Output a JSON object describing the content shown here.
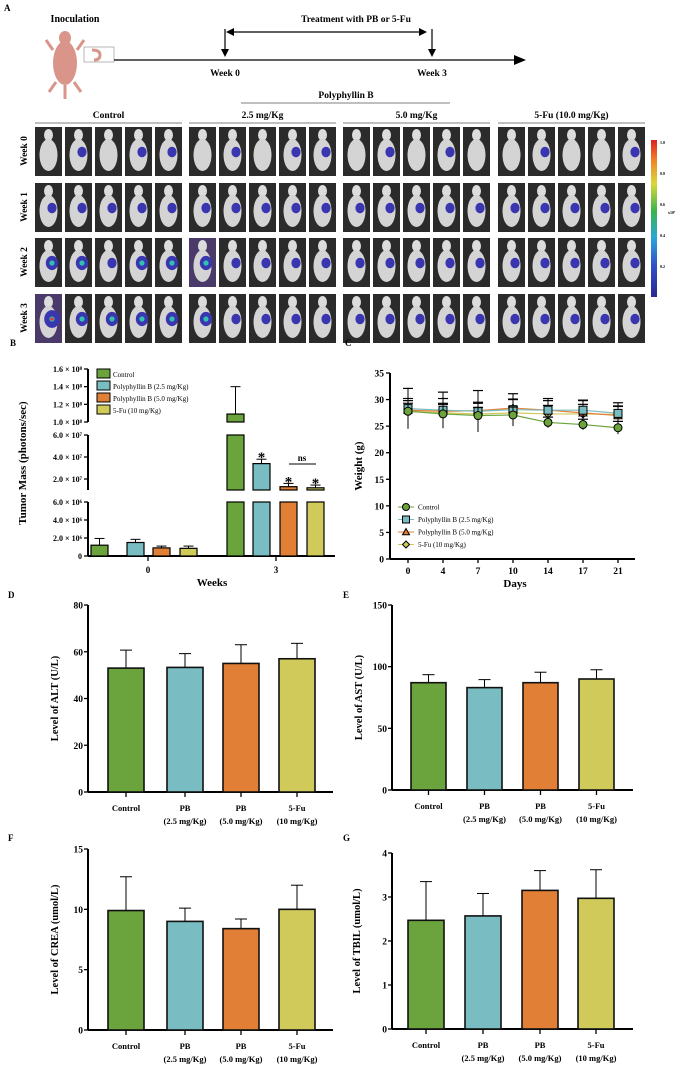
{
  "colors": {
    "control": "#6ba33c",
    "pb25": "#79bcc1",
    "pb50": "#e27f37",
    "fu": "#d0ca5a",
    "axis": "#000000"
  },
  "panel_a": {
    "label": "A",
    "inoculation": "Inoculation",
    "treatment": "Treatment with PB or 5-Fu",
    "week0": "Week 0",
    "week3": "Week 3",
    "polyphyllin": "Polyphyllin B",
    "groups": [
      "Control",
      "2.5 mg/Kg",
      "5.0 mg/Kg",
      "5-Fu (10.0 mg/Kg)"
    ],
    "rows": [
      "Week 0",
      "Week 1",
      "Week 2",
      "Week 3"
    ],
    "signal_levels": [
      [
        [
          0,
          1,
          0,
          1,
          1
        ],
        [
          0,
          1,
          0,
          1,
          1
        ],
        [
          0,
          1,
          0,
          1,
          0
        ],
        [
          0,
          1,
          0,
          0,
          1
        ]
      ],
      [
        [
          1,
          1,
          1,
          1,
          1
        ],
        [
          1,
          1,
          1,
          1,
          1
        ],
        [
          1,
          1,
          1,
          1,
          1
        ],
        [
          1,
          1,
          1,
          1,
          1
        ]
      ],
      [
        [
          2,
          2,
          1,
          2,
          2
        ],
        [
          2,
          1,
          1,
          1,
          1
        ],
        [
          1,
          1,
          1,
          1,
          1
        ],
        [
          1,
          1,
          1,
          1,
          1
        ]
      ],
      [
        [
          3,
          2,
          2,
          2,
          2
        ],
        [
          2,
          1,
          1,
          1,
          1
        ],
        [
          1,
          1,
          1,
          1,
          1
        ],
        [
          1,
          1,
          1,
          1,
          1
        ]
      ]
    ],
    "colorbar": {
      "ticks": [
        "1.0",
        "0.8",
        "0.6",
        "0.4",
        "0.2"
      ],
      "unit": "x10⁷"
    }
  },
  "chart_data": [
    {
      "panel": "B",
      "type": "bar",
      "ylabel": "Tumor Mass (photons/sec)",
      "xlabel": "Weeks",
      "categories": [
        "0",
        "3"
      ],
      "y_axis": "broken",
      "ylim": [
        0,
        160000000.0
      ],
      "y_segments": [
        [
          0,
          6000000.0
        ],
        [
          10000000.0,
          60000000.0
        ],
        [
          100000000.0,
          160000000.0
        ]
      ],
      "y_ticks": [
        "0",
        "2.0 × 10⁶",
        "4.0 × 10⁶",
        "6.0 × 10⁶",
        "2.0 × 10⁷",
        "4.0 × 10⁷",
        "6.0 × 10⁷",
        "1.0 × 10⁸",
        "1.2 × 10⁸",
        "1.4 × 10⁸",
        "1.6 × 10⁸"
      ],
      "y_tick_values": [
        0,
        2000000.0,
        4000000.0,
        6000000.0,
        20000000.0,
        40000000.0,
        60000000.0,
        100000000.0,
        120000000.0,
        140000000.0,
        160000000.0
      ],
      "legend_position": "top-left",
      "series": [
        {
          "name": "Control",
          "values": [
            1200000.0,
            109000000.0
          ],
          "error_top": [
            1950000.0,
            140000000.0
          ],
          "sig": [
            "",
            ""
          ]
        },
        {
          "name": "Polyphyllin B (2.5 mg/Kg)",
          "values": [
            1500000.0,
            34000000.0
          ],
          "error_top": [
            1850000.0,
            38000000.0
          ],
          "sig": [
            "",
            "*"
          ]
        },
        {
          "name": "Polyphyllin B (5.0 mg/Kg)",
          "values": [
            900000.0,
            13000000.0
          ],
          "error_top": [
            1100000.0,
            16000000.0
          ],
          "sig": [
            "",
            "*"
          ]
        },
        {
          "name": "5-Fu (10 mg/Kg)",
          "values": [
            850000.0,
            12000000.0
          ],
          "error_top": [
            1100000.0,
            14500000.0
          ],
          "sig": [
            "",
            "*"
          ]
        }
      ],
      "annotation": "ns"
    },
    {
      "panel": "C",
      "type": "line",
      "ylabel": "Weight (g)",
      "xlabel": "Days",
      "x": [
        0,
        4,
        7,
        10,
        14,
        17,
        21
      ],
      "ylim": [
        0,
        35
      ],
      "y_ticks": [
        0,
        5,
        10,
        15,
        20,
        25,
        30,
        35
      ],
      "legend_position": "bottom-left",
      "series": [
        {
          "name": "Control",
          "marker": "circle",
          "values": [
            27.8,
            27.3,
            27.0,
            27.1,
            25.7,
            25.3,
            24.7
          ],
          "error": [
            1.5,
            1.8,
            1.5,
            1.5,
            1.0,
            1.0,
            1.2
          ]
        },
        {
          "name": "Polyphyllin B (2.5 mg/Kg)",
          "marker": "square",
          "values": [
            28.3,
            28.0,
            27.8,
            28.1,
            28.0,
            28.0,
            27.4
          ],
          "error": [
            3.8,
            3.4,
            3.9,
            3.0,
            2.2,
            1.9,
            2.0
          ]
        },
        {
          "name": "Polyphyllin B (5.0 mg/Kg)",
          "marker": "triangle",
          "values": [
            28.0,
            27.8,
            27.9,
            28.4,
            28.0,
            27.5,
            27.0
          ],
          "error": [
            2.2,
            2.4,
            1.6,
            1.7,
            1.8,
            2.3,
            1.8
          ]
        },
        {
          "name": "5-Fu (10 mg/Kg)",
          "marker": "diamond",
          "values": [
            27.8,
            27.5,
            27.3,
            27.5,
            27.3,
            27.3,
            27.2
          ],
          "error": [
            2.0,
            1.8,
            2.0,
            2.5,
            1.6,
            1.8,
            1.5
          ]
        }
      ]
    },
    {
      "panel": "D",
      "type": "bar",
      "ylabel": "Level of ALT (U/L)",
      "categories": [
        [
          "Control"
        ],
        [
          "PB",
          "(2.5 mg/Kg)"
        ],
        [
          "PB",
          "(5.0 mg/Kg)"
        ],
        [
          "5-Fu",
          "(10 mg/Kg)"
        ]
      ],
      "ylim": [
        0,
        80
      ],
      "y_ticks": [
        0,
        20,
        40,
        60,
        80
      ],
      "values": [
        53,
        53.3,
        55,
        57
      ],
      "error_top": [
        60.7,
        59.2,
        63,
        63.6
      ]
    },
    {
      "panel": "E",
      "type": "bar",
      "ylabel": "Level of AST (U/L)",
      "categories": [
        [
          "Control"
        ],
        [
          "PB",
          "(2.5 mg/Kg)"
        ],
        [
          "PB",
          "(5.0 mg/Kg)"
        ],
        [
          "5-Fu",
          "(10 mg/Kg)"
        ]
      ],
      "ylim": [
        0,
        150
      ],
      "y_ticks": [
        0,
        50,
        100,
        150
      ],
      "values": [
        87,
        83,
        87,
        90
      ],
      "error_top": [
        93.5,
        89.5,
        95.5,
        97.5
      ]
    },
    {
      "panel": "F",
      "type": "bar",
      "ylabel": "Level of CREA (umol/L)",
      "categories": [
        [
          "Control"
        ],
        [
          "PB",
          "(2.5 mg/Kg)"
        ],
        [
          "PB",
          "(5.0 mg/Kg)"
        ],
        [
          "5-Fu",
          "(10 mg/Kg)"
        ]
      ],
      "ylim": [
        0,
        15
      ],
      "y_ticks": [
        0,
        5,
        10,
        15
      ],
      "values": [
        9.9,
        9.0,
        8.4,
        10.0
      ],
      "error_top": [
        12.7,
        10.1,
        9.2,
        12.0
      ]
    },
    {
      "panel": "G",
      "type": "bar",
      "ylabel": "Level of TBIL (umol/L)",
      "categories": [
        [
          "Control"
        ],
        [
          "PB",
          "(2.5 mg/Kg)"
        ],
        [
          "PB",
          "(5.0 mg/Kg)"
        ],
        [
          "5-Fu",
          "(10 mg/Kg)"
        ]
      ],
      "ylim": [
        0,
        4
      ],
      "y_ticks": [
        0,
        1,
        2,
        3,
        4
      ],
      "values": [
        2.47,
        2.57,
        3.15,
        2.97
      ],
      "error_top": [
        3.35,
        3.08,
        3.6,
        3.62
      ]
    }
  ]
}
